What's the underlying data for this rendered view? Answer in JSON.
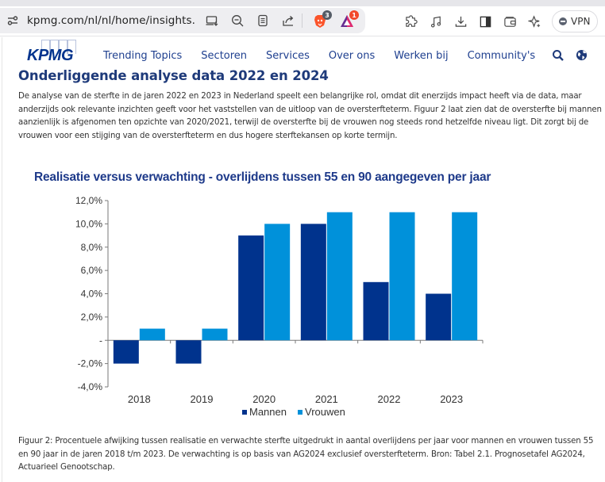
{
  "browser": {
    "url": "kpmg.com/nl/nl/home/insights...",
    "shields_badge_count": "3",
    "rewards_badge_count": "1",
    "vpn_label": "VPN",
    "url_icons": [
      "install-app-icon",
      "zoom-out-icon",
      "reader-mode-icon",
      "share-icon"
    ],
    "toolbar_icons": [
      "extensions-icon",
      "media-icon",
      "downloads-icon",
      "sidebar-icon",
      "wallet-icon",
      "leo-ai-icon"
    ]
  },
  "site": {
    "logo_text": "KPMG",
    "nav": [
      {
        "label": "Trending Topics"
      },
      {
        "label": "Sectoren"
      },
      {
        "label": "Services"
      },
      {
        "label": "Over ons"
      },
      {
        "label": "Werken bij"
      },
      {
        "label": "Community's"
      }
    ]
  },
  "article": {
    "heading": "Onderliggende analyse data 2022 en 2024",
    "intro": "De analyse van de sterfte in de jaren 2022 en 2023 in Nederland speelt een belangrijke rol, omdat dit enerzijds impact heeft via de data, maar anderzijds ook relevante inzichten geeft voor het vaststellen van de uitloop van de oversterfteterm. Figuur 2 laat zien dat de oversterfte bij mannen aanzienlijk is afgenomen ten opzichte van 2020/2021, terwijl de oversterfte bij de vrouwen nog steeds rond hetzelfde niveau ligt. Dit zorgt bij de vrouwen voor een stijging van de oversterfteterm en dus hogere sterftekansen op korte termijn.",
    "caption": "Figuur 2: Procentuele afwijking tussen realisatie en verwachte sterfte uitgedrukt in aantal overlijdens per jaar voor mannen en vrouwen tussen 55 en 90 jaar in de jaren 2018 t/m 2023. De verwachting is op basis van AG2024 exclusief oversterfteterm. Bron: Tabel 2.1. Prognosetafel AG2024, Actuarieel Genootschap."
  },
  "chart_data": {
    "type": "bar",
    "title": "Realisatie versus verwachting  - overlijdens tussen 55 en 90 aangegeven per jaar",
    "xlabel": "",
    "ylabel": "",
    "categories": [
      "2018",
      "2019",
      "2020",
      "2021",
      "2022",
      "2023"
    ],
    "series": [
      {
        "name": "Mannen",
        "color": "#00338d",
        "values": [
          -2.0,
          -2.0,
          9.0,
          10.0,
          5.0,
          4.0
        ]
      },
      {
        "name": "Vrouwen",
        "color": "#0091da",
        "values": [
          1.0,
          1.0,
          10.0,
          11.0,
          11.0,
          11.0
        ]
      }
    ],
    "ylim": [
      -4.0,
      12.0
    ],
    "yticks": [
      12,
      10,
      8,
      6,
      4,
      2,
      0,
      -2,
      -4
    ],
    "ytick_labels": [
      "12,0%",
      "10,0%",
      "8,0%",
      "6,0%",
      "4,0%",
      "2,0%",
      "-",
      "-2,0%",
      "-4,0%"
    ],
    "grid": false,
    "legend_position": "bottom-center"
  }
}
